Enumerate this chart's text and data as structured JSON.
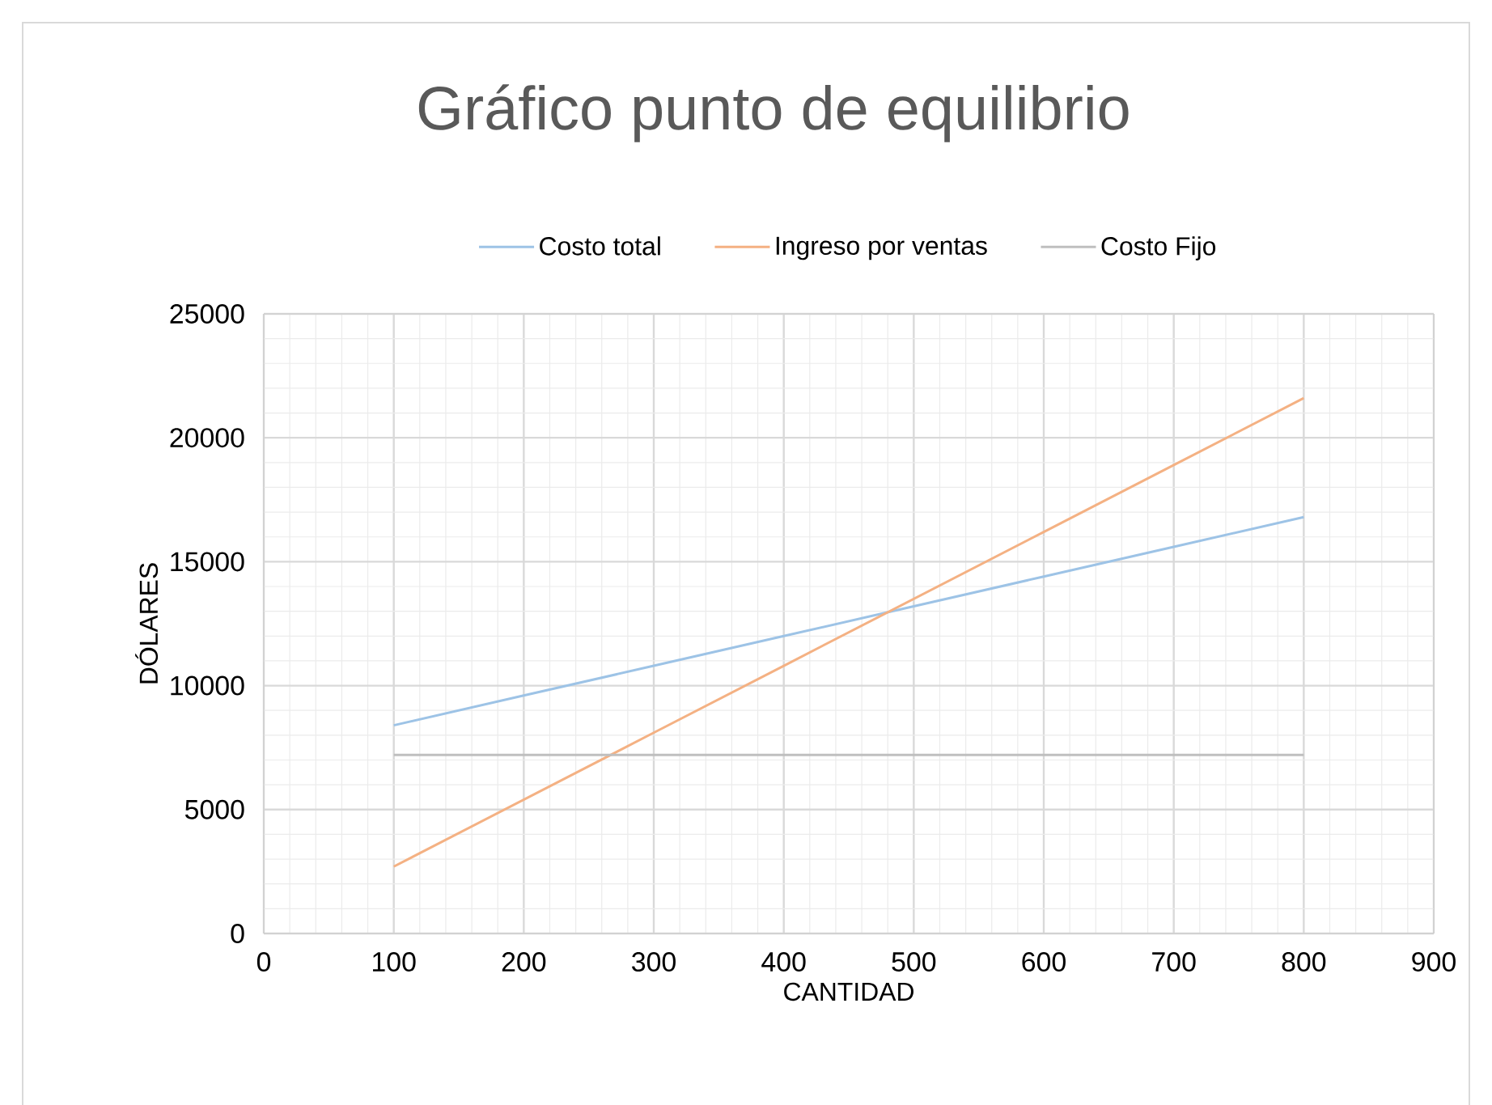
{
  "chart_data": {
    "type": "line",
    "title": "Gráfico punto de equilibrio",
    "xlabel": "CANTIDAD",
    "ylabel": "DÓLARES",
    "x": [
      100,
      200,
      300,
      400,
      500,
      600,
      700,
      800
    ],
    "series": [
      {
        "name": "Costo total",
        "color": "#9dc3e6",
        "values": [
          8400,
          9600,
          10800,
          12000,
          13200,
          14400,
          15600,
          16800
        ]
      },
      {
        "name": "Ingreso por ventas",
        "color": "#f4b183",
        "values": [
          2700,
          5400,
          8100,
          10800,
          13500,
          16200,
          18900,
          21600
        ]
      },
      {
        "name": "Costo Fijo",
        "color": "#bfbfbf",
        "values": [
          7200,
          7200,
          7200,
          7200,
          7200,
          7200,
          7200,
          7200
        ]
      }
    ],
    "xlim": [
      0,
      900
    ],
    "ylim": [
      0,
      25000
    ],
    "xticks": [
      0,
      100,
      200,
      300,
      400,
      500,
      600,
      700,
      800,
      900
    ],
    "yticks": [
      0,
      5000,
      10000,
      15000,
      20000,
      25000
    ],
    "grid": true,
    "legend": "top",
    "line_style": "solid"
  }
}
